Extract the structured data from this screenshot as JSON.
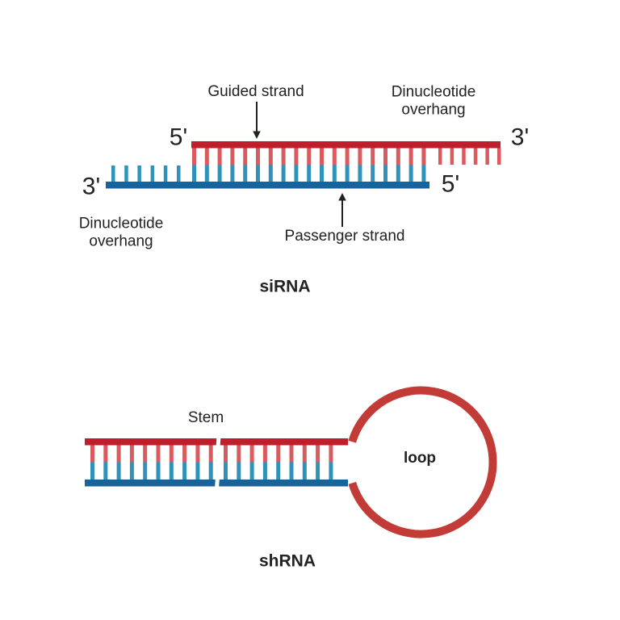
{
  "colors": {
    "guide_strand_red": "#bf1f2c",
    "base_pair_red": "#d95b60",
    "passenger_strand_blue": "#17639b",
    "base_pair_blue": "#2e92bb",
    "loop_red": "#c23b36",
    "text": "#222222",
    "background": "#ffffff"
  },
  "sirna": {
    "title": "siRNA",
    "guided_strand_label": "Guided strand",
    "passenger_strand_label": "Passenger strand",
    "dinucleotide_overhang_top_label": "Dinucleotide overhang",
    "dinucleotide_overhang_bottom_label": "Dinucleotide overhang",
    "guide_five_prime": "5'",
    "guide_three_prime": "3'",
    "passenger_three_prime": "3'",
    "passenger_five_prime": "5'"
  },
  "shrna": {
    "title": "shRNA",
    "stem_label": "Stem",
    "loop_label": "loop"
  }
}
